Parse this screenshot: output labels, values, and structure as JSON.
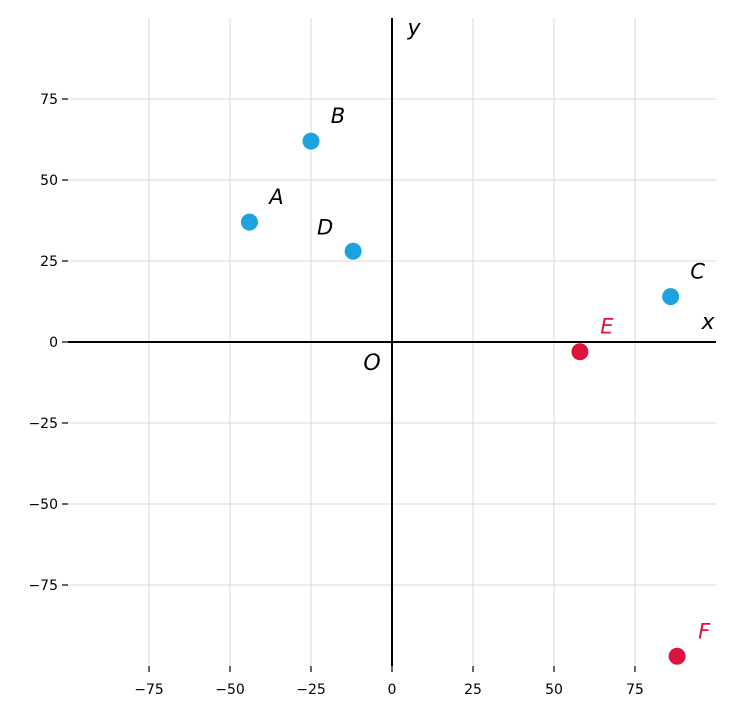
{
  "chart_data": {
    "type": "scatter",
    "xlim": [
      -100,
      100
    ],
    "ylim": [
      -100,
      100
    ],
    "x_ticks": [
      -75,
      -50,
      -25,
      0,
      25,
      50,
      75
    ],
    "y_ticks": [
      -75,
      -50,
      -25,
      0,
      25,
      50,
      75
    ],
    "x_tick_labels": [
      "−75",
      "−50",
      "−25",
      "0",
      "25",
      "50",
      "75"
    ],
    "y_tick_labels": [
      "−75",
      "−50",
      "−25",
      "0",
      "25",
      "50",
      "75"
    ],
    "grid": true,
    "axis_x_name": "x",
    "axis_y_name": "y",
    "origin_label": "O",
    "colors": {
      "blue": "#1ca3dd",
      "red": "#dc143c"
    },
    "points": [
      {
        "label": "A",
        "x": -44,
        "y": 37,
        "color": "blue"
      },
      {
        "label": "B",
        "x": -25,
        "y": 62,
        "color": "blue"
      },
      {
        "label": "C",
        "x": 86,
        "y": 14,
        "color": "blue"
      },
      {
        "label": "D",
        "x": -12,
        "y": 28,
        "color": "blue"
      },
      {
        "label": "E",
        "x": 58,
        "y": -3,
        "color": "red"
      },
      {
        "label": "F",
        "x": 88,
        "y": -97,
        "color": "red"
      }
    ]
  }
}
